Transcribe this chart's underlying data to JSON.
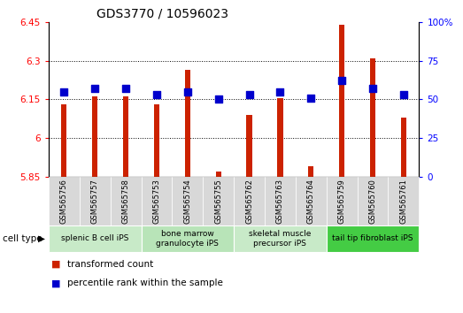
{
  "title": "GDS3770 / 10596023",
  "samples": [
    "GSM565756",
    "GSM565757",
    "GSM565758",
    "GSM565753",
    "GSM565754",
    "GSM565755",
    "GSM565762",
    "GSM565763",
    "GSM565764",
    "GSM565759",
    "GSM565760",
    "GSM565761"
  ],
  "red_values": [
    6.13,
    6.16,
    6.16,
    6.13,
    6.265,
    5.87,
    6.09,
    6.155,
    5.89,
    6.44,
    6.31,
    6.08
  ],
  "blue_values": [
    55,
    57,
    57,
    53,
    55,
    50,
    53,
    55,
    51,
    62,
    57,
    53
  ],
  "ylim_left": [
    5.85,
    6.45
  ],
  "ylim_right": [
    0,
    100
  ],
  "yticks_left": [
    5.85,
    6.0,
    6.15,
    6.3,
    6.45
  ],
  "yticks_right": [
    0,
    25,
    50,
    75,
    100
  ],
  "ytick_labels_left": [
    "5.85",
    "6",
    "6.15",
    "6.3",
    "6.45"
  ],
  "ytick_labels_right": [
    "0",
    "25",
    "50",
    "75",
    "100%"
  ],
  "grid_lines": [
    6.0,
    6.15,
    6.3
  ],
  "cell_types": [
    {
      "label": "splenic B cell iPS",
      "start": 0,
      "end": 3,
      "color": "#c8eac8"
    },
    {
      "label": "bone marrow\ngranulocyte iPS",
      "start": 3,
      "end": 6,
      "color": "#b8e4b8"
    },
    {
      "label": "skeletal muscle\nprecursor iPS",
      "start": 6,
      "end": 9,
      "color": "#c8eac8"
    },
    {
      "label": "tail tip fibroblast iPS",
      "start": 9,
      "end": 12,
      "color": "#44cc44"
    }
  ],
  "bar_color": "#cc2200",
  "dot_color": "#0000cc",
  "bar_bottom": 5.85,
  "bar_width": 0.18,
  "dot_size": 28,
  "xlabel": "cell type",
  "legend_red": "transformed count",
  "legend_blue": "percentile rank within the sample",
  "title_fontsize": 10,
  "tick_fontsize": 7.5,
  "sample_label_fontsize": 6.0,
  "cell_label_fontsize": 6.5,
  "legend_fontsize": 7.5
}
